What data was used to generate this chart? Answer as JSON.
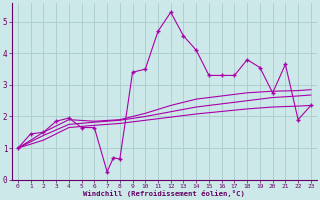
{
  "background_color": "#cce8e8",
  "grid_color": "#aacccc",
  "line_color": "#aa00aa",
  "xlabel": "Windchill (Refroidissement éolien,°C)",
  "xlim": [
    -0.5,
    23.5
  ],
  "ylim": [
    0,
    5.6
  ],
  "yticks": [
    0,
    1,
    2,
    3,
    4,
    5
  ],
  "xticks": [
    0,
    1,
    2,
    3,
    4,
    5,
    6,
    7,
    8,
    9,
    10,
    11,
    12,
    13,
    14,
    15,
    16,
    17,
    18,
    19,
    20,
    21,
    22,
    23
  ],
  "series": [
    {
      "x": [
        0,
        1,
        2,
        3,
        4,
        5,
        6,
        7,
        7.5,
        8,
        9,
        10,
        11,
        12,
        13,
        14,
        15,
        16,
        17,
        18,
        19,
        20,
        21,
        22,
        23
      ],
      "y": [
        1.0,
        1.45,
        1.5,
        1.85,
        1.95,
        1.65,
        1.65,
        0.25,
        0.7,
        0.65,
        3.4,
        3.5,
        4.7,
        5.3,
        4.55,
        4.1,
        3.3,
        3.3,
        3.3,
        3.8,
        3.55,
        2.75,
        3.65,
        1.9,
        2.35
      ],
      "marker": "+"
    },
    {
      "x": [
        0,
        2,
        4,
        6,
        8,
        10,
        12,
        14,
        16,
        18,
        20,
        22,
        23
      ],
      "y": [
        1.0,
        1.5,
        1.9,
        1.85,
        1.9,
        2.1,
        2.35,
        2.55,
        2.65,
        2.75,
        2.8,
        2.82,
        2.85
      ],
      "marker": null
    },
    {
      "x": [
        0,
        2,
        4,
        6,
        8,
        10,
        12,
        14,
        16,
        18,
        20,
        22,
        23
      ],
      "y": [
        1.0,
        1.4,
        1.75,
        1.82,
        1.88,
        2.0,
        2.15,
        2.3,
        2.4,
        2.5,
        2.6,
        2.65,
        2.68
      ],
      "marker": null
    },
    {
      "x": [
        0,
        2,
        4,
        6,
        8,
        10,
        12,
        14,
        16,
        18,
        20,
        22,
        23
      ],
      "y": [
        1.0,
        1.25,
        1.65,
        1.72,
        1.78,
        1.88,
        1.98,
        2.08,
        2.16,
        2.24,
        2.3,
        2.33,
        2.35
      ],
      "marker": null
    }
  ],
  "figsize": [
    3.2,
    2.0
  ],
  "dpi": 100
}
